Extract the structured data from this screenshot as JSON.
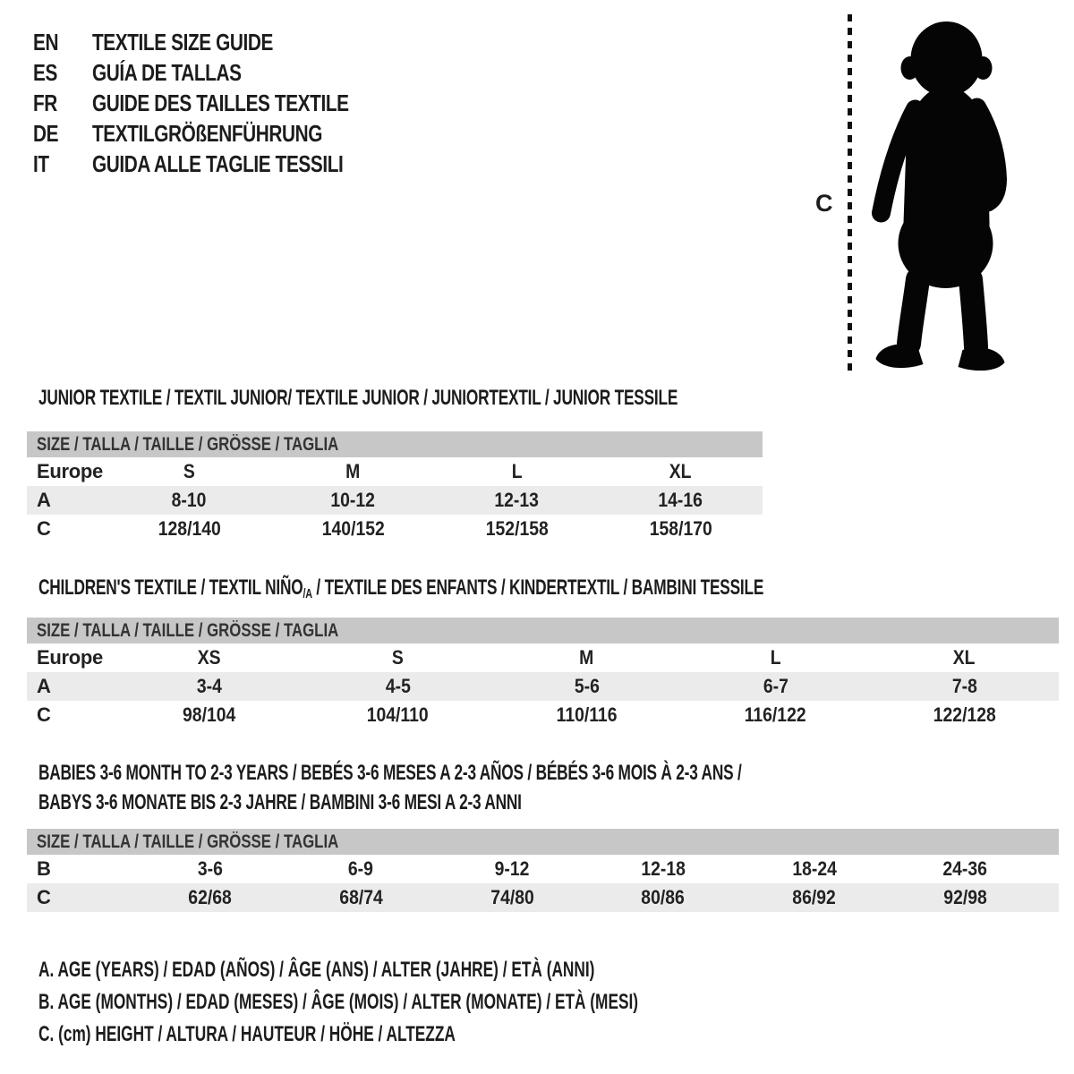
{
  "theme": {
    "background": "#ffffff",
    "text_color": "#1c1c1c",
    "header_bar_bg": "#c7c7c7",
    "stripe_bg": "#ebebeb",
    "silhouette_color": "#050505"
  },
  "languages": [
    {
      "code": "EN",
      "label": "TEXTILE SIZE GUIDE"
    },
    {
      "code": "ES",
      "label": "GUÍA DE TALLAS"
    },
    {
      "code": "FR",
      "label": "GUIDE DES TAILLES TEXTILE"
    },
    {
      "code": "DE",
      "label": "TEXTILGRÖßENFÜHRUNG"
    },
    {
      "code": "IT",
      "label": "GUIDA ALLE TAGLIE TESSILI"
    }
  ],
  "figure": {
    "measure_label": "C",
    "silhouette_name": "toddler-silhouette"
  },
  "tables": {
    "size_header": "SIZE / TALLA / TAILLE / GRÖSSE / TAGLIA",
    "junior": {
      "title": "JUNIOR TEXTILE / TEXTIL JUNIOR/ TEXTILE JUNIOR / JUNIORTEXTIL / JUNIOR TESSILE",
      "rows": [
        {
          "label": "Europe",
          "stripe": false,
          "values": [
            "S",
            "M",
            "L",
            "XL"
          ]
        },
        {
          "label": "A",
          "stripe": true,
          "values": [
            "8-10",
            "10-12",
            "12-13",
            "14-16"
          ]
        },
        {
          "label": "C",
          "stripe": false,
          "values": [
            "128/140",
            "140/152",
            "152/158",
            "158/170"
          ]
        }
      ]
    },
    "children": {
      "title_part1": "CHILDREN'S TEXTILE / TEXTIL NIÑO",
      "title_sub": "/A",
      "title_part2": " / TEXTILE DES ENFANTS / KINDERTEXTIL / BAMBINI TESSILE",
      "rows": [
        {
          "label": "Europe",
          "stripe": false,
          "values": [
            "XS",
            "S",
            "M",
            "L",
            "XL"
          ]
        },
        {
          "label": "A",
          "stripe": true,
          "values": [
            "3-4",
            "4-5",
            "5-6",
            "6-7",
            "7-8"
          ]
        },
        {
          "label": "C",
          "stripe": false,
          "values": [
            "98/104",
            "104/110",
            "110/116",
            "116/122",
            "122/128"
          ]
        }
      ]
    },
    "babies": {
      "title_line1": "BABIES 3-6 MONTH TO 2-3 YEARS / BEBÉS 3-6 MESES A 2-3 AÑOS / BÉBÉS 3-6 MOIS À 2-3 ANS /",
      "title_line2": "BABYS 3-6 MONATE BIS 2-3 JAHRE / BAMBINI 3-6 MESI A 2-3 ANNI",
      "rows": [
        {
          "label": "B",
          "stripe": false,
          "values": [
            "3-6",
            "6-9",
            "9-12",
            "12-18",
            "18-24",
            "24-36"
          ]
        },
        {
          "label": "C",
          "stripe": true,
          "values": [
            "62/68",
            "68/74",
            "74/80",
            "80/86",
            "86/92",
            "92/98"
          ]
        }
      ]
    }
  },
  "legend": [
    "A. AGE (YEARS) / EDAD (AÑOS) / ÂGE (ANS) / ALTER (JAHRE) / ETÀ (ANNI)",
    "B. AGE (MONTHS) / EDAD (MESES) / ÂGE (MOIS) / ALTER (MONATE) / ETÀ (MESI)",
    "C. (cm) HEIGHT / ALTURA / HAUTEUR / HÖHE / ALTEZZA"
  ]
}
